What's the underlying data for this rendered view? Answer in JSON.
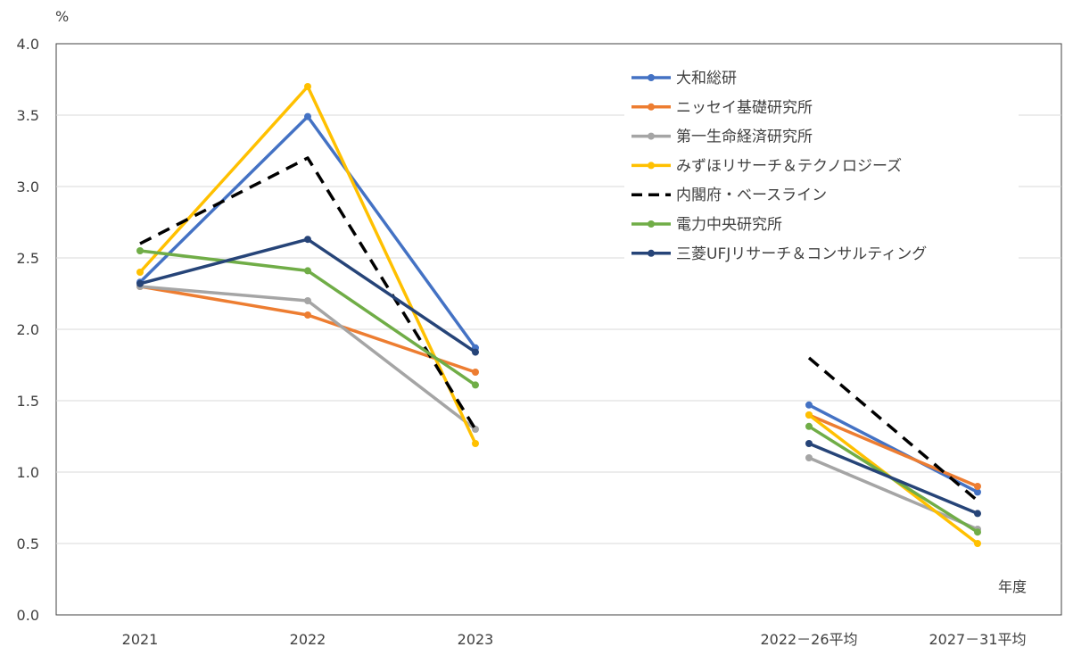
{
  "chart_data": {
    "type": "line",
    "x": [
      "2021",
      "2022",
      "2023",
      "2022－26平均",
      "2027－31平均"
    ],
    "y_unit": "%",
    "x_unit": "年度",
    "ylim": [
      0,
      4
    ],
    "yticks": [
      "0.0",
      "0.5",
      "1.0",
      "1.5",
      "2.0",
      "2.5",
      "3.0",
      "3.5",
      "4.0"
    ],
    "grid": true,
    "legend_position": "top-right",
    "groups": [
      [
        0,
        1,
        2
      ],
      [
        3,
        4
      ]
    ],
    "series": [
      {
        "name": "大和総研",
        "color": "#4472C4",
        "dash": false,
        "marker": true,
        "values": [
          2.33,
          3.49,
          1.87,
          1.47,
          0.86
        ]
      },
      {
        "name": "ニッセイ基礎研究所",
        "color": "#ED7D31",
        "dash": false,
        "marker": true,
        "values": [
          2.3,
          2.1,
          1.7,
          1.4,
          0.9
        ]
      },
      {
        "name": "第一生命経済研究所",
        "color": "#A5A5A5",
        "dash": false,
        "marker": true,
        "values": [
          2.3,
          2.2,
          1.3,
          1.1,
          0.6
        ]
      },
      {
        "name": "みずほリサーチ＆テクノロジーズ",
        "color": "#FFC000",
        "dash": false,
        "marker": true,
        "values": [
          2.4,
          3.7,
          1.2,
          1.4,
          0.5
        ]
      },
      {
        "name": "内閣府・ベースライン",
        "color": "#000000",
        "dash": true,
        "marker": false,
        "values": [
          2.6,
          3.2,
          1.3,
          1.8,
          0.8
        ]
      },
      {
        "name": "電力中央研究所",
        "color": "#70AD47",
        "dash": false,
        "marker": true,
        "values": [
          2.55,
          2.41,
          1.61,
          1.32,
          0.58
        ]
      },
      {
        "name": "三菱UFJリサーチ＆コンサルティング",
        "color": "#264478",
        "dash": false,
        "marker": true,
        "values": [
          2.32,
          2.63,
          1.84,
          1.2,
          0.71
        ]
      }
    ]
  }
}
